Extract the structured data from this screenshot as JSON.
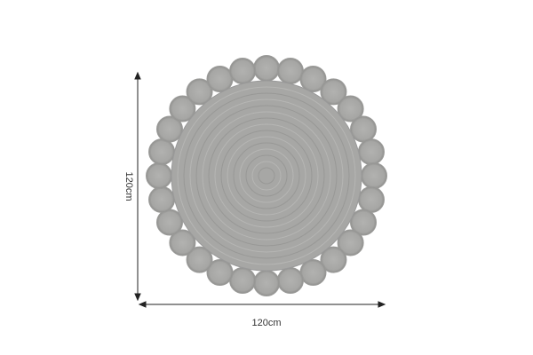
{
  "product": {
    "name": "round-jute-rug",
    "color": "#a9a9a7",
    "scallop_count": 28
  },
  "dimensions": {
    "width_label": "120cm",
    "height_label": "120cm"
  }
}
